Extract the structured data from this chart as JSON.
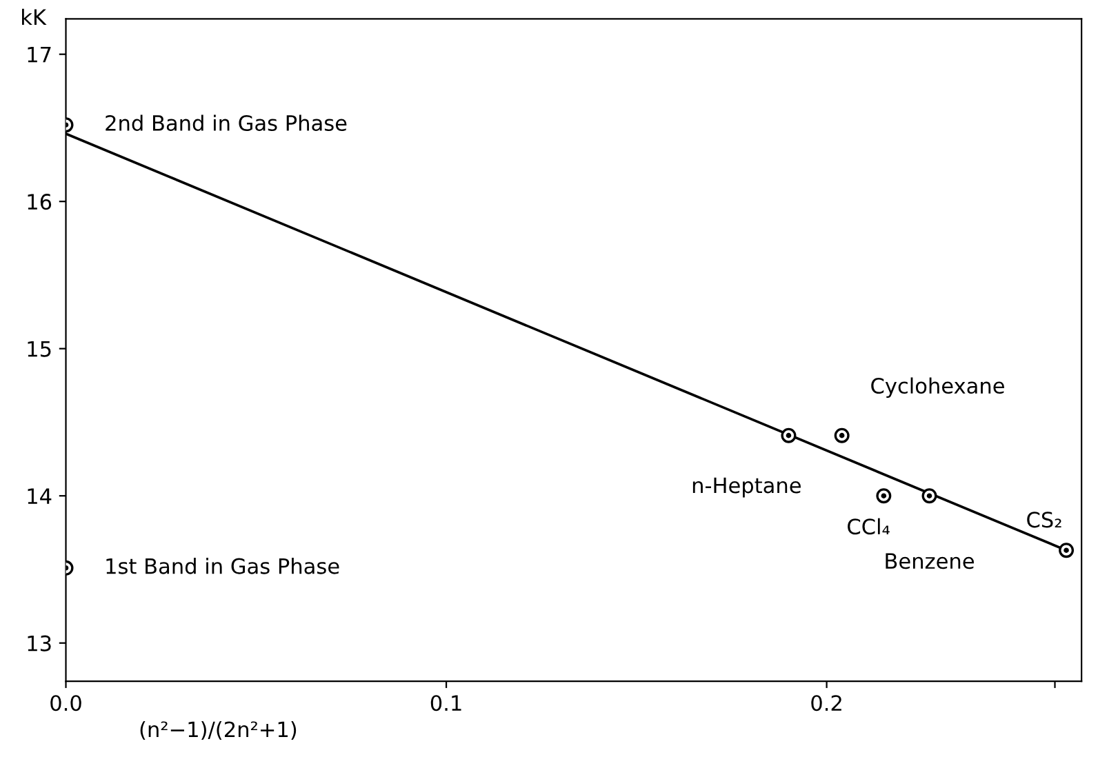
{
  "chart_data": {
    "type": "scatter",
    "xlabel": "(n²−1)/(2n²+1)",
    "ylabel": "kK",
    "series": [
      {
        "x": [
          0,
          0,
          0.19,
          0.204,
          0.215,
          0.227,
          0.263
        ],
        "values": [
          16.52,
          13.51,
          14.41,
          14.41,
          14.0,
          14.0,
          13.63
        ],
        "color": "#000000",
        "marker": "circle"
      },
      {
        "type": "line",
        "x": [
          0,
          0.263
        ],
        "values": [
          16.46,
          13.63
        ],
        "color": "#000000",
        "marker": "none",
        "line_style": "solid"
      }
    ],
    "xlim": [
      0,
      0.267
    ],
    "ylim": [
      12.74,
      17.24
    ],
    "xticks": [
      {
        "value": 0,
        "label": "0.0"
      },
      0.1,
      0.2,
      {
        "value": 0.26,
        "label": null
      }
    ],
    "yticks": [
      13,
      14,
      15,
      16,
      17
    ],
    "grid": false,
    "legend": false,
    "annotations": [
      {
        "text": "2nd Band in Gas Phase",
        "x": 0,
        "y": 16.52
      },
      {
        "text": "1st Band in Gas Phase",
        "x": 0,
        "y": 13.51
      },
      {
        "text": "n-Heptane",
        "x": 0.19,
        "y": 14.41
      },
      {
        "text": "Cyclohexane",
        "x": 0.204,
        "y": 14.41
      },
      {
        "text": "CCl₄",
        "x": 0.215,
        "y": 14.0
      },
      {
        "text": "Benzene",
        "x": 0.227,
        "y": 14.0
      },
      {
        "text": "CS₂",
        "x": 0.263,
        "y": 13.63
      }
    ]
  }
}
